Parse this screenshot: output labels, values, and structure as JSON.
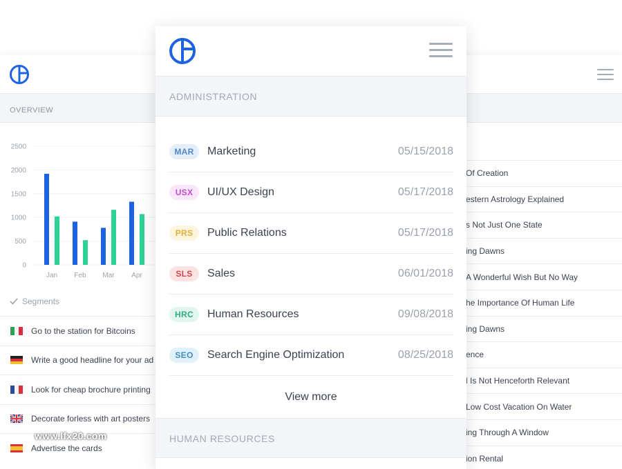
{
  "back_panel": {
    "overview_label": "OVERVIEW",
    "chart_data": {
      "type": "bar",
      "categories": [
        "Jan",
        "Feb",
        "Mar",
        "Apr"
      ],
      "series": [
        {
          "values": [
            1920,
            910,
            780,
            1330
          ],
          "color": "#1d63e0"
        },
        {
          "values": [
            1020,
            520,
            1160,
            1070
          ],
          "color": "#2ed196"
        }
      ],
      "y_ticks": [
        "2500",
        "2000",
        "1500",
        "1000",
        "500",
        "0"
      ],
      "ylim": [
        0,
        2500
      ],
      "grid": true
    },
    "segments_label": "Segments",
    "left_items": [
      {
        "text": "Go to the station for Bitcoins",
        "flag": "italy-flag"
      },
      {
        "text": "Write a good headline for your ad",
        "flag": "germany-flag"
      },
      {
        "text": "Look for cheap brochure printing",
        "flag": "france-flag"
      },
      {
        "text": "Decorate forless with art posters",
        "flag": "uk-flag"
      },
      {
        "text": "Advertise the cards",
        "flag": "spain-flag"
      }
    ],
    "right_items": [
      "Of Creation",
      "estern Astrology Explained",
      "s Not Just One State",
      "ing Dawns",
      "A Wonderful Wish But No Way",
      "he Importance Of Human Life",
      "ing Dawns",
      "ence",
      "l Is Not Henceforth Relevant",
      "Low Cost Vacation On Water",
      "ing Through A Window",
      "ion Rental"
    ]
  },
  "modal": {
    "section_title": "ADMINISTRATION",
    "rows": [
      {
        "code": "MAR",
        "name": "Marketing",
        "date": "05/15/2018",
        "fg": "#4f86c6",
        "bg": "#e4eef9"
      },
      {
        "code": "USX",
        "name": "UI/UX Design",
        "date": "05/17/2018",
        "fg": "#c14fc8",
        "bg": "#fae6fb"
      },
      {
        "code": "PRS",
        "name": "Public Relations",
        "date": "05/17/2018",
        "fg": "#e2b03a",
        "bg": "#fdf4df"
      },
      {
        "code": "SLS",
        "name": "Sales",
        "date": "06/01/2018",
        "fg": "#d5424c",
        "bg": "#fbe3e4"
      },
      {
        "code": "HRC",
        "name": "Human Resources",
        "date": "09/08/2018",
        "fg": "#2fae7d",
        "bg": "#e1f6ee"
      },
      {
        "code": "SEO",
        "name": "Search Engine Optimization",
        "date": "08/25/2018",
        "fg": "#3b8fc4",
        "bg": "#e2f1f9"
      }
    ],
    "view_more_label": "View more",
    "second_section_title": "HUMAN RESOURCES"
  },
  "watermark": "www.lfx20.com",
  "colors": {
    "brand": "#1d63e0",
    "accent_green": "#2ed196"
  }
}
